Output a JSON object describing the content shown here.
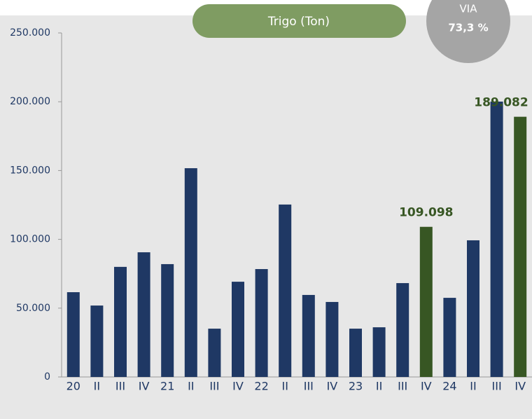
{
  "chart_data": {
    "type": "bar",
    "title": "Trigo (Ton)",
    "badge": {
      "label": "VIA",
      "value": "73,3 %"
    },
    "categories": [
      "20",
      "II",
      "III",
      "IV",
      "21",
      "II",
      "III",
      "IV",
      "22",
      "II",
      "III",
      "IV",
      "23",
      "II",
      "III",
      "IV",
      "24",
      "II",
      "III",
      "IV"
    ],
    "values": [
      61600,
      51900,
      80000,
      90600,
      82000,
      151700,
      35100,
      69200,
      78400,
      125300,
      59600,
      54500,
      35100,
      36100,
      68200,
      109098,
      57500,
      99300,
      200100,
      189082
    ],
    "value_labels": [
      null,
      null,
      null,
      null,
      null,
      null,
      null,
      null,
      null,
      null,
      null,
      null,
      null,
      null,
      null,
      "109.098",
      null,
      null,
      null,
      "189.082"
    ],
    "colors": [
      "#1f3864",
      "#1f3864",
      "#1f3864",
      "#1f3864",
      "#1f3864",
      "#1f3864",
      "#1f3864",
      "#1f3864",
      "#1f3864",
      "#1f3864",
      "#1f3864",
      "#1f3864",
      "#1f3864",
      "#1f3864",
      "#1f3864",
      "#375623",
      "#1f3864",
      "#1f3864",
      "#1f3864",
      "#375623"
    ],
    "ylim": [
      0,
      250000
    ],
    "yticks": [
      0,
      {
        "value": 50000,
        "label": "50.000"
      },
      {
        "value": 100000,
        "label": "100.000"
      },
      {
        "value": 150000,
        "label": "150.000"
      },
      {
        "value": 200000,
        "label": "200.000"
      },
      {
        "value": 250000,
        "label": "250.000"
      }
    ],
    "grid": false
  }
}
